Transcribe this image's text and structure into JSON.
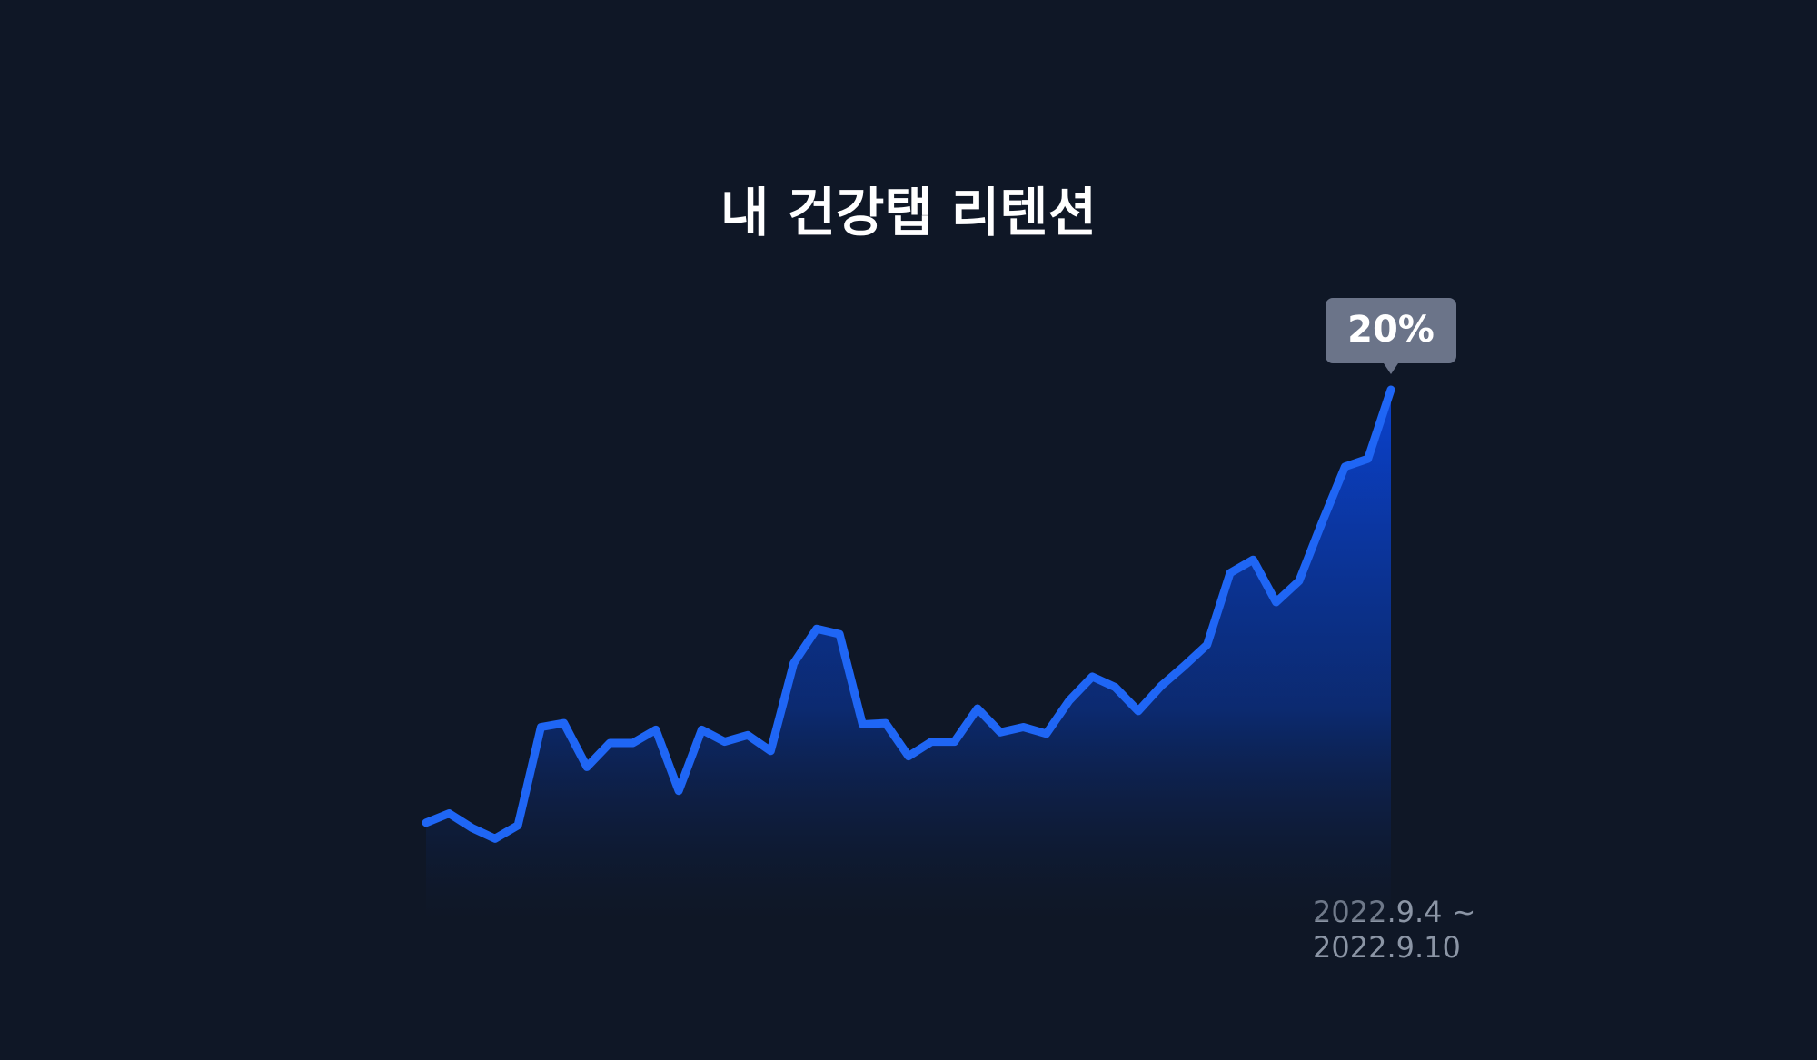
{
  "chart_data": {
    "type": "area",
    "title": "내 건강탭 리텐션",
    "values": [
      3.7,
      4.05,
      3.5,
      3.1,
      3.6,
      7.3,
      7.45,
      5.8,
      6.7,
      6.7,
      7.2,
      4.9,
      7.2,
      6.75,
      7.0,
      6.4,
      9.7,
      11.0,
      10.8,
      7.4,
      7.45,
      6.2,
      6.75,
      6.75,
      8.0,
      7.1,
      7.3,
      7.05,
      8.3,
      9.2,
      8.8,
      7.9,
      8.85,
      9.6,
      10.4,
      13.1,
      13.6,
      12.0,
      12.8,
      15.0,
      17.1,
      17.4,
      20
    ],
    "value_labels": [
      null,
      null,
      null,
      null,
      null,
      null,
      null,
      null,
      null,
      null,
      null,
      null,
      null,
      null,
      null,
      null,
      null,
      null,
      null,
      null,
      null,
      null,
      null,
      null,
      null,
      null,
      null,
      null,
      null,
      null,
      null,
      null,
      null,
      null,
      null,
      null,
      null,
      null,
      null,
      null,
      null,
      null,
      "20%"
    ],
    "color": "#1f66f5",
    "ylim": [
      0,
      20
    ],
    "date_range": [
      "2022.9.4 ~",
      "2022.9.10"
    ]
  }
}
